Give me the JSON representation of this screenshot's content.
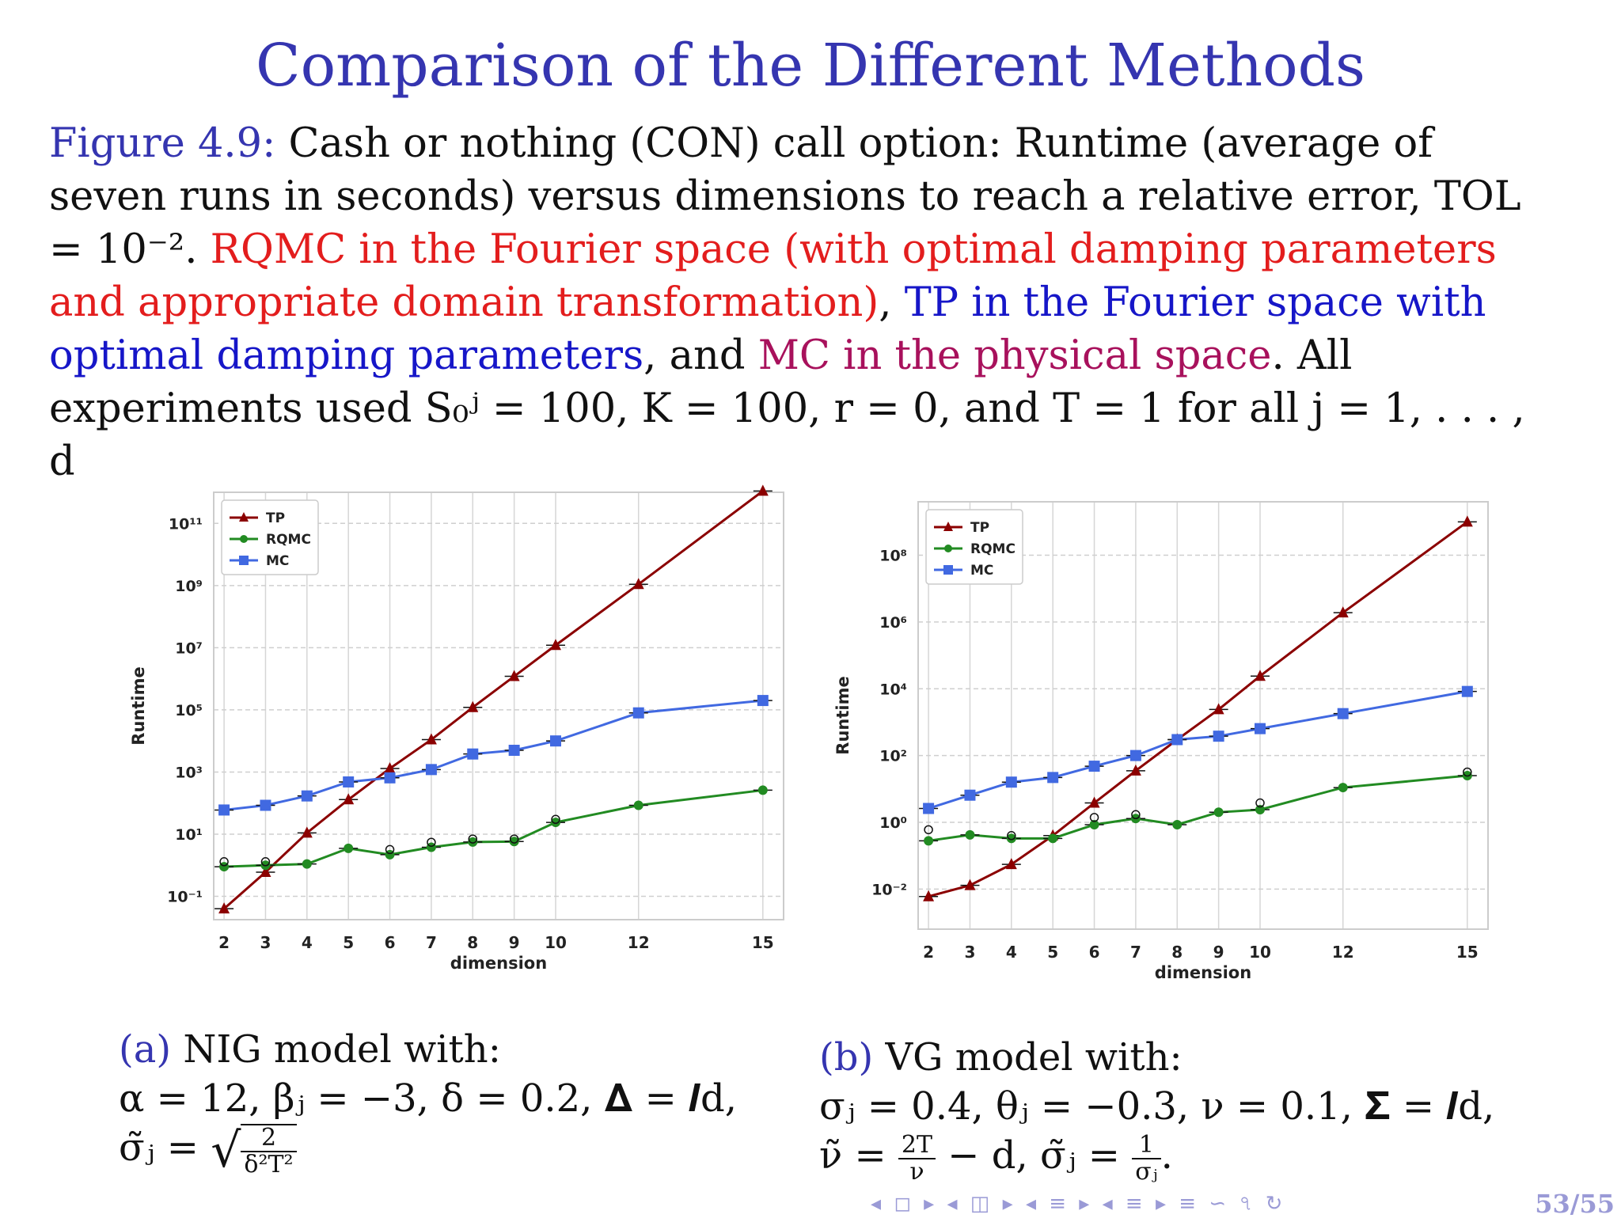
{
  "title": "Comparison of the Different Methods",
  "caption": {
    "label": "Figure 4.9:",
    "part1": "Cash or nothing (CON) call option: Runtime (average of seven runs in seconds) versus dimensions to reach a relative error, TOL = 10⁻².",
    "red": "RQMC in the Fourier space (with optimal damping parameters and appropriate domain transformation)",
    "sep1": ",",
    "blue": "TP in the Fourier space with optimal damping parameters",
    "sep2": ", and",
    "purple": "MC in the physical space",
    "part2": ". All experiments used S₀ʲ = 100, K = 100, r = 0, and T = 1 for all j = 1, . . . , d"
  },
  "panels": {
    "a": {
      "label": "(a)",
      "line1": "NIG model with:",
      "line2": "α = 12, βⱼ = −3, δ = 0.2, 𝚫 = 𝑰d,",
      "line3_lhs": "σ̃ⱼ =",
      "frac_num": "2",
      "frac_den": "δ²T²"
    },
    "b": {
      "label": "(b)",
      "line1": "VG model with:",
      "line2": "σⱼ = 0.4, θⱼ = −0.3, ν = 0.1, 𝚺 = 𝑰d,",
      "line3_lhs": "ν̃ =",
      "frac1_num": "2T",
      "frac1_den": "ν",
      "line3_mid": "− d, σ̃ⱼ =",
      "frac2_num": "1",
      "frac2_den": "σⱼ",
      "line3_end": "."
    }
  },
  "footer": {
    "nav": "◂ ◻ ▸ ◂ ◫ ▸ ◂ ≡ ▸ ◂ ≡ ▸   ≡   ∽ ৭ ↻",
    "page": "53/55"
  },
  "colors": {
    "TP": "#8b0000",
    "RQMC": "#228b22",
    "MC": "#4169e1",
    "title": "#3535b0"
  },
  "chart_data": [
    {
      "type": "line",
      "xlabel": "dimension",
      "ylabel": "Runtime",
      "yscale": "log",
      "x": [
        2,
        3,
        4,
        5,
        6,
        7,
        8,
        9,
        10,
        12,
        15
      ],
      "xticks": [
        "2",
        "3",
        "4",
        "5",
        "6",
        "7",
        "8",
        "9",
        "10",
        "12",
        "15"
      ],
      "ylim_log10": [
        -1.75,
        12
      ],
      "yticks_log10": [
        -1,
        1,
        3,
        5,
        7,
        9,
        11
      ],
      "yticklabels": [
        "10⁻¹",
        "10¹",
        "10³",
        "10⁵",
        "10⁷",
        "10⁹",
        "10¹¹"
      ],
      "legend_loc": "upper left",
      "grid": true,
      "series": [
        {
          "name": "TP",
          "marker": "triangle",
          "y": [
            0.04,
            0.6,
            11,
            130,
            1300,
            11000.0,
            120000.0,
            1200000.0,
            12000000.0,
            1100000000.0,
            1100000000000.0
          ]
        },
        {
          "name": "RQMC",
          "marker": "circle",
          "y": [
            0.9,
            1.0,
            1.1,
            3.5,
            2.2,
            3.8,
            5.6,
            5.8,
            24,
            85,
            260
          ]
        },
        {
          "name": "MC",
          "marker": "square",
          "y": [
            60,
            85,
            170,
            480,
            650,
            1200,
            3800,
            5000,
            10000.0,
            80000.0,
            200000.0
          ]
        }
      ],
      "outliers": [
        [
          2,
          1.3
        ],
        [
          3,
          1.3
        ],
        [
          6,
          3.2
        ],
        [
          7,
          5.5
        ],
        [
          8,
          7
        ],
        [
          9,
          7
        ],
        [
          10,
          30
        ]
      ]
    },
    {
      "type": "line",
      "xlabel": "dimension",
      "ylabel": "Runtime",
      "yscale": "log",
      "x": [
        2,
        3,
        4,
        5,
        6,
        7,
        8,
        9,
        10,
        12,
        15
      ],
      "xticks": [
        "2",
        "3",
        "4",
        "5",
        "6",
        "7",
        "8",
        "9",
        "10",
        "12",
        "15"
      ],
      "ylim_log10": [
        -3.2,
        9.6
      ],
      "yticks_log10": [
        -2,
        0,
        2,
        4,
        6,
        8
      ],
      "yticklabels": [
        "10⁻²",
        "10⁰",
        "10²",
        "10⁴",
        "10⁶",
        "10⁸"
      ],
      "legend_loc": "upper left",
      "grid": true,
      "series": [
        {
          "name": "TP",
          "marker": "triangle",
          "y": [
            0.006,
            0.013,
            0.055,
            0.4,
            3.8,
            35,
            300,
            2400,
            24000.0,
            1900000.0,
            1000000000.0
          ]
        },
        {
          "name": "RQMC",
          "marker": "circle",
          "y": [
            0.28,
            0.42,
            0.33,
            0.33,
            0.85,
            1.3,
            0.85,
            2.0,
            2.4,
            11,
            25
          ]
        },
        {
          "name": "MC",
          "marker": "square",
          "y": [
            2.6,
            6.5,
            16,
            22,
            48,
            100,
            300,
            380,
            640,
            1800,
            8300
          ]
        }
      ],
      "outliers": [
        [
          2,
          0.6
        ],
        [
          4,
          0.4
        ],
        [
          6,
          1.4
        ],
        [
          7,
          1.7
        ],
        [
          10,
          3.8
        ],
        [
          15,
          32
        ]
      ]
    }
  ]
}
